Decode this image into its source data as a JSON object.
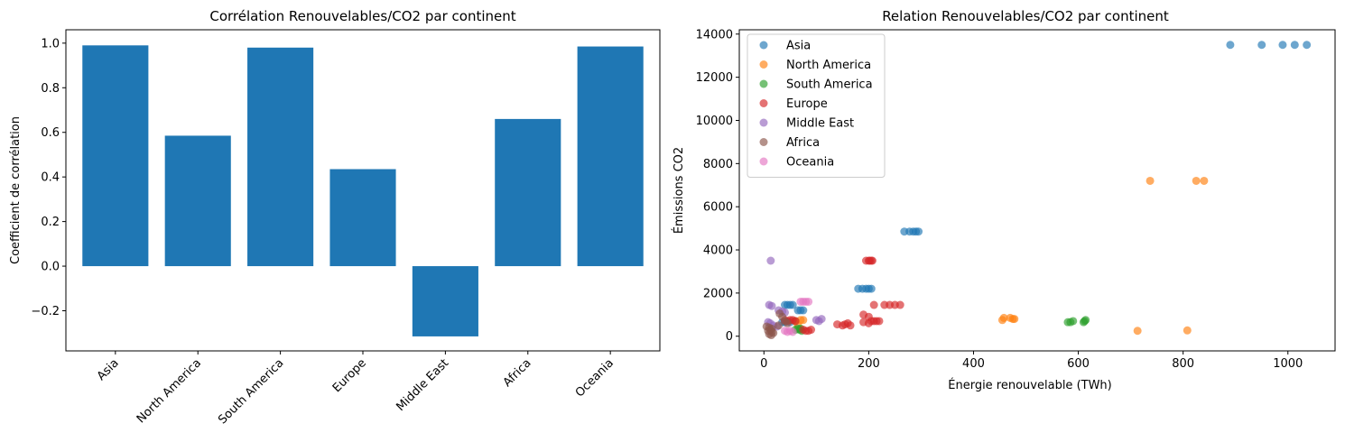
{
  "chart_data": [
    {
      "type": "bar",
      "title": "Corrélation Renouvelables/CO2 par continent",
      "xlabel": "",
      "ylabel": "Coefficient de corrélation",
      "categories": [
        "Asia",
        "North America",
        "South America",
        "Europe",
        "Middle East",
        "Africa",
        "Oceania"
      ],
      "values": [
        0.99,
        0.585,
        0.98,
        0.435,
        -0.315,
        0.66,
        0.985
      ],
      "ylim": [
        -0.38,
        1.06
      ],
      "yticks": [
        -0.2,
        0.0,
        0.2,
        0.4,
        0.6,
        0.8,
        1.0
      ],
      "ytick_labels": [
        "−0.2",
        "0.0",
        "0.2",
        "0.4",
        "0.6",
        "0.8",
        "1.0"
      ],
      "bar_color": "#1f77b4",
      "grid": false
    },
    {
      "type": "scatter",
      "title": "Relation Renouvelables/CO2 par continent",
      "xlabel": "Énergie renouvelable (TWh)",
      "ylabel": "Émissions CO2",
      "xlim": [
        -47,
        1090
      ],
      "ylim": [
        -680,
        14200
      ],
      "xticks": [
        0,
        200,
        400,
        600,
        800,
        1000
      ],
      "yticks": [
        0,
        2000,
        4000,
        6000,
        8000,
        10000,
        12000,
        14000
      ],
      "legend_position": "top-left",
      "grid": false,
      "series": [
        {
          "name": "Asia",
          "color": "#1f77b4",
          "points": [
            [
              890,
              13500
            ],
            [
              950,
              13500
            ],
            [
              990,
              13500
            ],
            [
              1013,
              13500
            ],
            [
              1036,
              13500
            ],
            [
              268,
              4850
            ],
            [
              278,
              4850
            ],
            [
              285,
              4850
            ],
            [
              290,
              4850
            ],
            [
              295,
              4850
            ],
            [
              180,
              2200
            ],
            [
              188,
              2200
            ],
            [
              195,
              2200
            ],
            [
              200,
              2200
            ],
            [
              205,
              2200
            ],
            [
              40,
              1450
            ],
            [
              45,
              1450
            ],
            [
              50,
              1450
            ],
            [
              55,
              1450
            ],
            [
              65,
              1200
            ],
            [
              70,
              1200
            ],
            [
              75,
              1200
            ],
            [
              35,
              650
            ],
            [
              40,
              650
            ],
            [
              50,
              650
            ],
            [
              60,
              700
            ]
          ]
        },
        {
          "name": "North America",
          "color": "#ff7f0e",
          "points": [
            [
              737,
              7200
            ],
            [
              825,
              7200
            ],
            [
              840,
              7200
            ],
            [
              455,
              750
            ],
            [
              458,
              850
            ],
            [
              470,
              850
            ],
            [
              475,
              800
            ],
            [
              478,
              800
            ],
            [
              713,
              250
            ],
            [
              808,
              270
            ],
            [
              65,
              500
            ],
            [
              70,
              750
            ],
            [
              75,
              750
            ],
            [
              60,
              700
            ]
          ]
        },
        {
          "name": "South America",
          "color": "#2ca02c",
          "points": [
            [
              580,
              650
            ],
            [
              585,
              650
            ],
            [
              590,
              700
            ],
            [
              610,
              650
            ],
            [
              612,
              700
            ],
            [
              614,
              750
            ],
            [
              60,
              300
            ],
            [
              65,
              350
            ],
            [
              68,
              300
            ],
            [
              70,
              350
            ],
            [
              72,
              250
            ]
          ]
        },
        {
          "name": "Europe",
          "color": "#d62728",
          "points": [
            [
              195,
              3500
            ],
            [
              200,
              3500
            ],
            [
              202,
              3500
            ],
            [
              205,
              3500
            ],
            [
              207,
              3500
            ],
            [
              210,
              1450
            ],
            [
              230,
              1450
            ],
            [
              240,
              1450
            ],
            [
              250,
              1450
            ],
            [
              260,
              1450
            ],
            [
              190,
              1000
            ],
            [
              200,
              900
            ],
            [
              205,
              700
            ],
            [
              210,
              700
            ],
            [
              215,
              700
            ],
            [
              220,
              700
            ],
            [
              190,
              650
            ],
            [
              200,
              600
            ],
            [
              140,
              550
            ],
            [
              150,
              500
            ],
            [
              155,
              550
            ],
            [
              160,
              600
            ],
            [
              165,
              500
            ],
            [
              75,
              300
            ],
            [
              80,
              250
            ],
            [
              85,
              250
            ],
            [
              90,
              300
            ],
            [
              40,
              750
            ],
            [
              45,
              700
            ],
            [
              50,
              750
            ],
            [
              55,
              750
            ],
            [
              60,
              700
            ]
          ]
        },
        {
          "name": "Middle East",
          "color": "#9467bd",
          "points": [
            [
              13,
              3500
            ],
            [
              10,
              1450
            ],
            [
              15,
              1400
            ],
            [
              28,
              1200
            ],
            [
              35,
              1150
            ],
            [
              40,
              1100
            ],
            [
              100,
              750
            ],
            [
              105,
              700
            ],
            [
              110,
              800
            ],
            [
              8,
              650
            ],
            [
              12,
              600
            ],
            [
              18,
              500
            ],
            [
              25,
              450
            ]
          ]
        },
        {
          "name": "Africa",
          "color": "#8c564b",
          "points": [
            [
              5,
              450
            ],
            [
              10,
              400
            ],
            [
              15,
              350
            ],
            [
              12,
              300
            ],
            [
              8,
              250
            ],
            [
              15,
              200
            ],
            [
              18,
              150
            ],
            [
              10,
              100
            ],
            [
              14,
              50
            ],
            [
              30,
              1050
            ],
            [
              35,
              900
            ],
            [
              40,
              700
            ],
            [
              45,
              600
            ],
            [
              28,
              500
            ]
          ]
        },
        {
          "name": "Oceania",
          "color": "#e377c2",
          "points": [
            [
              70,
              1600
            ],
            [
              75,
              1600
            ],
            [
              80,
              1600
            ],
            [
              85,
              1600
            ],
            [
              40,
              250
            ],
            [
              45,
              200
            ],
            [
              50,
              250
            ],
            [
              55,
              200
            ]
          ]
        }
      ]
    }
  ]
}
